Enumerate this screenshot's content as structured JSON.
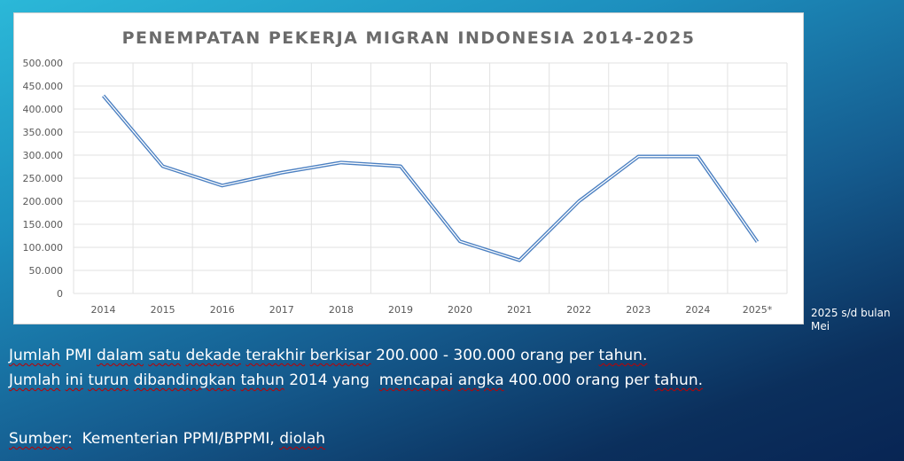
{
  "chart_data": {
    "type": "line",
    "title": "PENEMPATAN PEKERJA MIGRAN INDONESIA 2014-2025",
    "categories": [
      "2014",
      "2015",
      "2016",
      "2017",
      "2018",
      "2019",
      "2020",
      "2021",
      "2022",
      "2023",
      "2024",
      "2025*"
    ],
    "series": [
      {
        "values": [
          429000,
          276000,
          234000,
          262000,
          284000,
          276000,
          113000,
          72000,
          200000,
          297000,
          297000,
          112000
        ]
      }
    ],
    "ylim": [
      0,
      500000
    ],
    "yticks": [
      0,
      50000,
      100000,
      150000,
      200000,
      250000,
      300000,
      350000,
      400000,
      450000,
      500000
    ],
    "ytick_labels": [
      "0",
      "50.000",
      "100.000",
      "150.000",
      "200.000",
      "250.000",
      "300.000",
      "350.000",
      "400.000",
      "450.000",
      "500.000"
    ],
    "grid": true,
    "line_color": "#4a7fc1"
  },
  "footnote": "2025 s/d bulan Mei",
  "summary": {
    "line1": "Jumlah PMI dalam satu dekade terakhir berkisar 200.000 - 300.000 orang per tahun.",
    "line2": "Jumlah ini turun dibandingkan tahun 2014 yang  mencapai angka 400.000 orang per tahun."
  },
  "source": "Sumber:  Kementerian PPMI/BPPMI, diolah"
}
